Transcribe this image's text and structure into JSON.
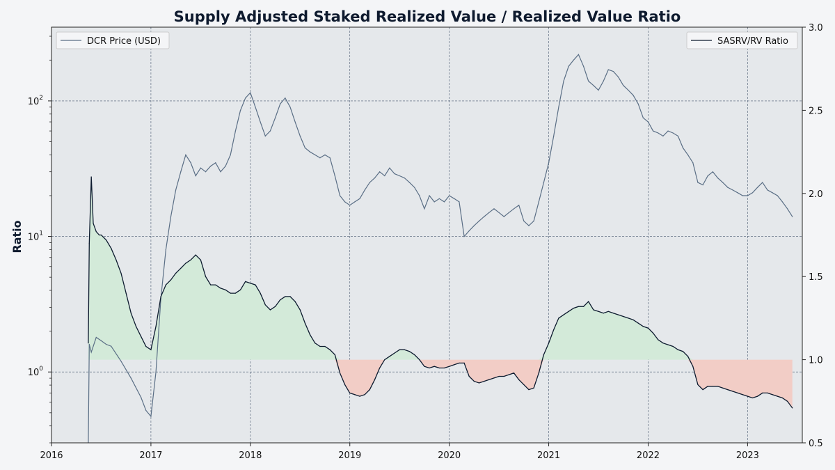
{
  "chart_data": {
    "type": "line",
    "title": "Supply Adjusted Staked Realized Value / Realized Value Ratio",
    "ylabel": "Ratio",
    "xlabel": "",
    "x_range": [
      2016.0,
      2023.55
    ],
    "x_ticks": [
      {
        "value": 2016,
        "label": "2016"
      },
      {
        "value": 2017,
        "label": "2017"
      },
      {
        "value": 2018,
        "label": "2018"
      },
      {
        "value": 2019,
        "label": "2019"
      },
      {
        "value": 2020,
        "label": "2020"
      },
      {
        "value": 2021,
        "label": "2021"
      },
      {
        "value": 2022,
        "label": "2022"
      },
      {
        "value": 2023,
        "label": "2023"
      }
    ],
    "left_axis": {
      "scale": "log",
      "ylim": [
        0.3,
        350
      ],
      "ticks": [
        {
          "value": 1,
          "base": "10",
          "exp": "0"
        },
        {
          "value": 10,
          "base": "10",
          "exp": "1"
        },
        {
          "value": 100,
          "base": "10",
          "exp": "2"
        }
      ]
    },
    "right_axis": {
      "scale": "linear",
      "ylim": [
        0.5,
        3.0
      ],
      "ticks": [
        {
          "value": 0.5,
          "label": "0.5"
        },
        {
          "value": 1.0,
          "label": "1.0"
        },
        {
          "value": 1.5,
          "label": "1.5"
        },
        {
          "value": 2.0,
          "label": "2.0"
        },
        {
          "value": 2.5,
          "label": "2.5"
        },
        {
          "value": 3.0,
          "label": "3.0"
        }
      ]
    },
    "baseline": 1.0,
    "legend_left": {
      "label": "DCR Price (USD)",
      "position": "top-left"
    },
    "legend_right": {
      "label": "SASRV/RV Ratio",
      "position": "top-right"
    },
    "colors": {
      "price": "#5a6e85",
      "ratio": "#0c1a2e",
      "fill_above": "#d3ead9",
      "fill_below": "#f2cdc6",
      "plot_bg": "#e5e8eb",
      "grid": "#4a5a70"
    },
    "series": [
      {
        "name": "DCR Price (USD)",
        "axis": "left",
        "x": [
          2016.37,
          2016.38,
          2016.4,
          2016.45,
          2016.5,
          2016.55,
          2016.6,
          2016.7,
          2016.8,
          2016.9,
          2016.95,
          2017.0,
          2017.05,
          2017.1,
          2017.15,
          2017.2,
          2017.25,
          2017.3,
          2017.35,
          2017.4,
          2017.45,
          2017.5,
          2017.55,
          2017.6,
          2017.65,
          2017.7,
          2017.75,
          2017.8,
          2017.85,
          2017.9,
          2017.95,
          2018.0,
          2018.05,
          2018.1,
          2018.15,
          2018.2,
          2018.25,
          2018.3,
          2018.35,
          2018.4,
          2018.45,
          2018.5,
          2018.55,
          2018.6,
          2018.65,
          2018.7,
          2018.75,
          2018.8,
          2018.85,
          2018.9,
          2018.95,
          2019.0,
          2019.05,
          2019.1,
          2019.15,
          2019.2,
          2019.25,
          2019.3,
          2019.35,
          2019.4,
          2019.45,
          2019.5,
          2019.55,
          2019.6,
          2019.65,
          2019.7,
          2019.75,
          2019.8,
          2019.85,
          2019.9,
          2019.95,
          2020.0,
          2020.05,
          2020.1,
          2020.15,
          2020.2,
          2020.25,
          2020.3,
          2020.35,
          2020.4,
          2020.45,
          2020.5,
          2020.55,
          2020.6,
          2020.65,
          2020.7,
          2020.75,
          2020.8,
          2020.85,
          2020.9,
          2020.95,
          2021.0,
          2021.05,
          2021.1,
          2021.15,
          2021.2,
          2021.25,
          2021.3,
          2021.35,
          2021.4,
          2021.45,
          2021.5,
          2021.55,
          2021.6,
          2021.65,
          2021.7,
          2021.75,
          2021.8,
          2021.85,
          2021.9,
          2021.95,
          2022.0,
          2022.05,
          2022.1,
          2022.15,
          2022.2,
          2022.25,
          2022.3,
          2022.35,
          2022.4,
          2022.45,
          2022.5,
          2022.55,
          2022.6,
          2022.65,
          2022.7,
          2022.75,
          2022.8,
          2022.85,
          2022.9,
          2022.95,
          2023.0,
          2023.05,
          2023.1,
          2023.15,
          2023.2,
          2023.25,
          2023.3,
          2023.35,
          2023.4,
          2023.45
        ],
        "values": [
          0.3,
          1.6,
          1.4,
          1.8,
          1.7,
          1.6,
          1.55,
          1.2,
          0.9,
          0.65,
          0.52,
          0.47,
          1.0,
          3.5,
          8.0,
          14,
          22,
          30,
          40,
          35,
          28,
          32,
          30,
          33,
          35,
          30,
          33,
          40,
          60,
          85,
          105,
          115,
          90,
          70,
          55,
          60,
          75,
          95,
          105,
          90,
          70,
          55,
          45,
          42,
          40,
          38,
          40,
          38,
          28,
          20,
          18,
          17,
          18,
          19,
          22,
          25,
          27,
          30,
          28,
          32,
          29,
          28,
          27,
          25,
          23,
          20,
          16,
          20,
          18,
          19,
          18,
          20,
          19,
          18,
          10,
          11,
          12,
          13,
          14,
          15,
          16,
          15,
          14,
          15,
          16,
          17,
          13,
          12,
          13,
          18,
          25,
          35,
          55,
          90,
          140,
          180,
          200,
          220,
          180,
          140,
          130,
          120,
          140,
          170,
          165,
          150,
          130,
          120,
          110,
          95,
          75,
          70,
          60,
          58,
          55,
          60,
          58,
          55,
          45,
          40,
          35,
          25,
          24,
          28,
          30,
          27,
          25,
          23,
          22,
          21,
          20,
          20,
          21,
          23,
          25,
          22,
          21,
          20,
          18,
          16,
          14
        ]
      },
      {
        "name": "SASRV/RV Ratio",
        "axis": "right",
        "x": [
          2016.37,
          2016.38,
          2016.4,
          2016.42,
          2016.45,
          2016.48,
          2016.5,
          2016.55,
          2016.6,
          2016.65,
          2016.7,
          2016.75,
          2016.8,
          2016.85,
          2016.9,
          2016.95,
          2017.0,
          2017.05,
          2017.1,
          2017.15,
          2017.2,
          2017.25,
          2017.3,
          2017.35,
          2017.4,
          2017.45,
          2017.5,
          2017.55,
          2017.6,
          2017.65,
          2017.7,
          2017.75,
          2017.8,
          2017.85,
          2017.9,
          2017.95,
          2018.0,
          2018.05,
          2018.1,
          2018.15,
          2018.2,
          2018.25,
          2018.3,
          2018.35,
          2018.4,
          2018.45,
          2018.5,
          2018.55,
          2018.6,
          2018.65,
          2018.7,
          2018.75,
          2018.8,
          2018.85,
          2018.9,
          2018.95,
          2019.0,
          2019.05,
          2019.1,
          2019.15,
          2019.2,
          2019.25,
          2019.3,
          2019.35,
          2019.4,
          2019.45,
          2019.5,
          2019.55,
          2019.6,
          2019.65,
          2019.7,
          2019.75,
          2019.8,
          2019.85,
          2019.9,
          2019.95,
          2020.0,
          2020.05,
          2020.1,
          2020.15,
          2020.2,
          2020.25,
          2020.3,
          2020.35,
          2020.4,
          2020.45,
          2020.5,
          2020.55,
          2020.6,
          2020.65,
          2020.7,
          2020.75,
          2020.8,
          2020.85,
          2020.9,
          2020.95,
          2021.0,
          2021.05,
          2021.1,
          2021.15,
          2021.2,
          2021.25,
          2021.3,
          2021.35,
          2021.4,
          2021.45,
          2021.5,
          2021.55,
          2021.6,
          2021.65,
          2021.7,
          2021.75,
          2021.8,
          2021.85,
          2021.9,
          2021.95,
          2022.0,
          2022.05,
          2022.1,
          2022.15,
          2022.2,
          2022.25,
          2022.3,
          2022.35,
          2022.4,
          2022.45,
          2022.5,
          2022.55,
          2022.6,
          2022.65,
          2022.7,
          2022.75,
          2022.8,
          2022.85,
          2022.9,
          2022.95,
          2023.0,
          2023.05,
          2023.1,
          2023.15,
          2023.2,
          2023.25,
          2023.3,
          2023.35,
          2023.4,
          2023.45
        ],
        "values": [
          1.1,
          1.7,
          2.1,
          1.82,
          1.77,
          1.75,
          1.75,
          1.72,
          1.67,
          1.6,
          1.52,
          1.4,
          1.28,
          1.2,
          1.14,
          1.08,
          1.06,
          1.2,
          1.38,
          1.45,
          1.48,
          1.52,
          1.55,
          1.58,
          1.6,
          1.63,
          1.6,
          1.5,
          1.45,
          1.45,
          1.43,
          1.42,
          1.4,
          1.4,
          1.42,
          1.47,
          1.46,
          1.45,
          1.4,
          1.33,
          1.3,
          1.32,
          1.36,
          1.38,
          1.38,
          1.35,
          1.3,
          1.22,
          1.15,
          1.1,
          1.08,
          1.08,
          1.06,
          1.03,
          0.92,
          0.85,
          0.8,
          0.79,
          0.78,
          0.79,
          0.82,
          0.88,
          0.95,
          1.0,
          1.02,
          1.04,
          1.06,
          1.06,
          1.05,
          1.03,
          1.0,
          0.96,
          0.95,
          0.96,
          0.95,
          0.95,
          0.96,
          0.97,
          0.98,
          0.98,
          0.9,
          0.87,
          0.86,
          0.87,
          0.88,
          0.89,
          0.9,
          0.9,
          0.91,
          0.92,
          0.88,
          0.85,
          0.82,
          0.83,
          0.92,
          1.03,
          1.1,
          1.18,
          1.25,
          1.27,
          1.29,
          1.31,
          1.32,
          1.32,
          1.35,
          1.3,
          1.29,
          1.28,
          1.29,
          1.28,
          1.27,
          1.26,
          1.25,
          1.24,
          1.22,
          1.2,
          1.19,
          1.16,
          1.12,
          1.1,
          1.09,
          1.08,
          1.06,
          1.05,
          1.02,
          0.96,
          0.85,
          0.82,
          0.84,
          0.84,
          0.84,
          0.83,
          0.82,
          0.81,
          0.8,
          0.79,
          0.78,
          0.77,
          0.78,
          0.8,
          0.8,
          0.79,
          0.78,
          0.77,
          0.75,
          0.71
        ]
      }
    ]
  }
}
